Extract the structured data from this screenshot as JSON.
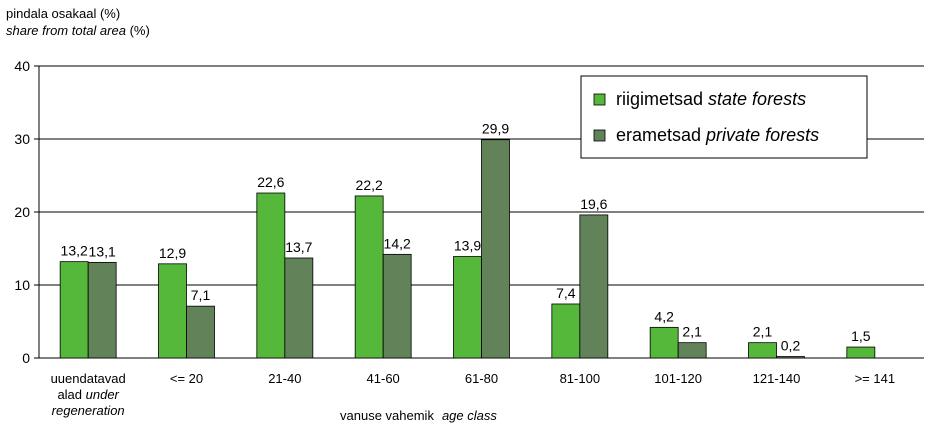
{
  "chart_data": {
    "type": "bar",
    "ylabel_et": "pindala osakaal (%)",
    "ylabel_en_italic": "share from total area",
    "ylabel_en_unit": " (%)",
    "xlabel_et": "vanuse vahemik",
    "xlabel_en": "age class",
    "ylim": [
      0,
      40
    ],
    "yticks": [
      0,
      10,
      20,
      30,
      40
    ],
    "grid": true,
    "legend_position": "top-right",
    "categories": [
      [
        "uuendatavad",
        "alad under",
        "regeneration"
      ],
      [
        "<= 20"
      ],
      [
        "21-40"
      ],
      [
        "41-60"
      ],
      [
        "61-80"
      ],
      [
        "81-100"
      ],
      [
        "101-120"
      ],
      [
        "121-140"
      ],
      [
        ">= 141"
      ]
    ],
    "series": [
      {
        "name": "riigimetsad",
        "name_en": "state forests",
        "color": "#55b83a",
        "values": [
          13.2,
          12.9,
          22.6,
          22.2,
          13.9,
          7.4,
          4.2,
          2.1,
          1.5
        ],
        "labels": [
          "13,2",
          "12,9",
          "22,6",
          "22,2",
          "13,9",
          "7,4",
          "4,2",
          "2,1",
          "1,5"
        ]
      },
      {
        "name": "erametsad",
        "name_en": "private forests",
        "color": "#62825a",
        "values": [
          13.1,
          7.1,
          13.7,
          14.2,
          29.9,
          19.6,
          2.1,
          0.2,
          null
        ],
        "labels": [
          "13,1",
          "7,1",
          "13,7",
          "14,2",
          "29,9",
          "19,6",
          "2,1",
          "0,2",
          ""
        ]
      }
    ]
  }
}
